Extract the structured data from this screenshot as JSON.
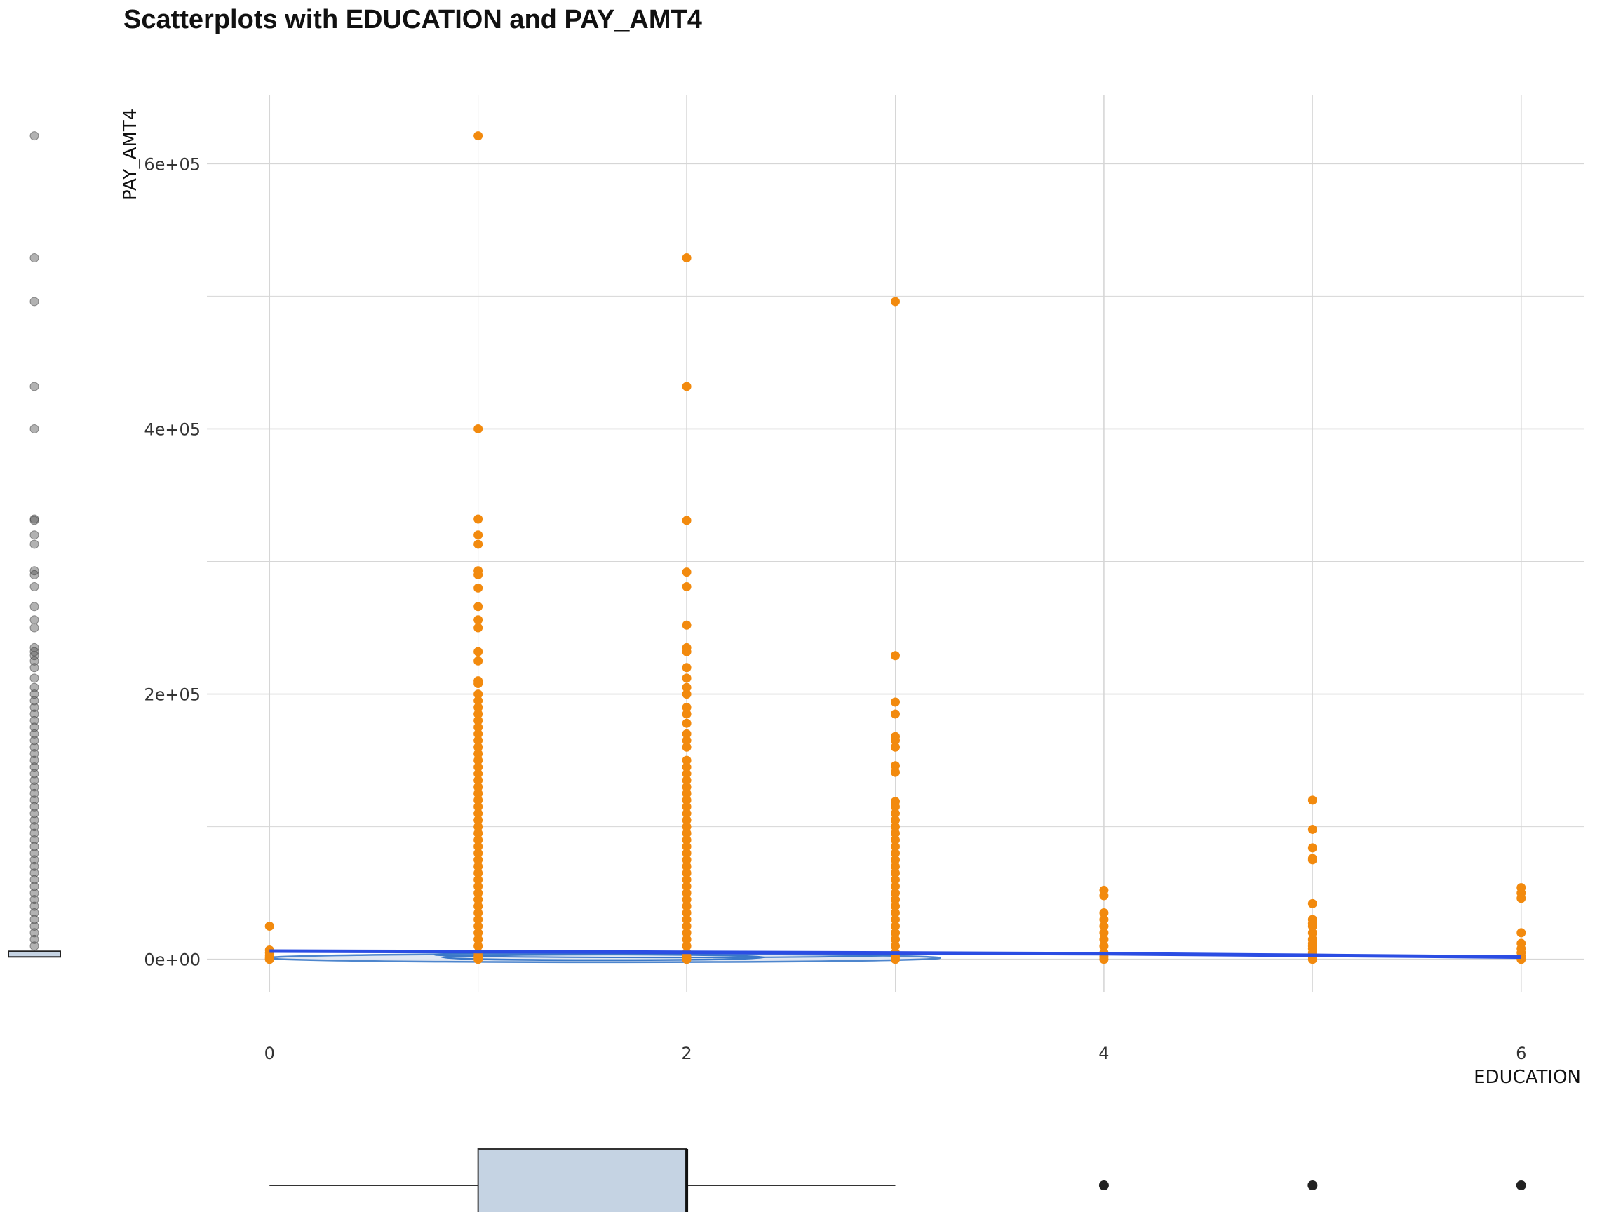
{
  "chart_data": {
    "type": "scatter",
    "title": "Scatterplots with EDUCATION and PAY_AMT4",
    "xlabel": "EDUCATION",
    "ylabel": "PAY_AMT4",
    "xlim": [
      -0.3,
      6.3
    ],
    "ylim": [
      -25000,
      652000
    ],
    "x_ticks": [
      {
        "value": 0,
        "label": "0"
      },
      {
        "value": 2,
        "label": "2"
      },
      {
        "value": 4,
        "label": "4"
      },
      {
        "value": 6,
        "label": "6"
      }
    ],
    "y_ticks": [
      {
        "value": 0,
        "label": "0e+00"
      },
      {
        "value": 200000,
        "label": "2e+05"
      },
      {
        "value": 400000,
        "label": "4e+05"
      },
      {
        "value": 600000,
        "label": "6e+05"
      }
    ],
    "grid": true,
    "point_color": "#f28a0e",
    "smooth_color": "#2b4de3",
    "density_color": "#3a78c8",
    "marginal_point_color": "#555555",
    "box_fill": "#c5d3e3",
    "series": [
      {
        "x": 0,
        "values": [
          25000,
          7000,
          5000,
          3000,
          1500,
          500,
          0
        ]
      },
      {
        "x": 1,
        "values": [
          621000,
          400000,
          332000,
          320000,
          313000,
          293000,
          290000,
          280000,
          266000,
          256000,
          250000,
          232000,
          225000,
          210000,
          208000,
          200000,
          195000,
          190000,
          185000,
          180000,
          175000,
          170000,
          165000,
          160000,
          155000,
          150000,
          145000,
          140000,
          135000,
          130000,
          125000,
          120000,
          115000,
          110000,
          105000,
          100000,
          95000,
          90000,
          85000,
          80000,
          75000,
          70000,
          65000,
          60000,
          55000,
          50000,
          45000,
          40000,
          35000,
          30000,
          25000,
          20000,
          15000,
          10000,
          5000,
          2000,
          0
        ]
      },
      {
        "x": 2,
        "values": [
          529000,
          432000,
          331000,
          292000,
          281000,
          252000,
          235000,
          232000,
          220000,
          212000,
          205000,
          200000,
          190000,
          185000,
          178000,
          170000,
          165000,
          160000,
          150000,
          145000,
          140000,
          135000,
          130000,
          125000,
          120000,
          115000,
          110000,
          105000,
          100000,
          95000,
          90000,
          85000,
          80000,
          75000,
          70000,
          65000,
          60000,
          55000,
          50000,
          45000,
          40000,
          35000,
          30000,
          25000,
          20000,
          15000,
          10000,
          5000,
          2000,
          0
        ]
      },
      {
        "x": 3,
        "values": [
          496000,
          229000,
          194000,
          185000,
          168000,
          165000,
          160000,
          146000,
          141000,
          119000,
          115000,
          110000,
          105000,
          100000,
          95000,
          90000,
          85000,
          80000,
          75000,
          70000,
          65000,
          60000,
          55000,
          50000,
          45000,
          40000,
          35000,
          30000,
          25000,
          20000,
          15000,
          10000,
          5000,
          2000,
          0
        ]
      },
      {
        "x": 4,
        "values": [
          52000,
          48000,
          35000,
          30000,
          25000,
          20000,
          15000,
          10000,
          5000,
          2000,
          0
        ]
      },
      {
        "x": 5,
        "values": [
          120000,
          98000,
          84000,
          76000,
          75000,
          42000,
          30000,
          27000,
          25000,
          20000,
          15000,
          12000,
          10000,
          8000,
          5000,
          2000,
          0
        ]
      },
      {
        "x": 6,
        "values": [
          54000,
          50000,
          46000,
          20000,
          12000,
          8000,
          5000,
          2000,
          0
        ]
      }
    ],
    "smooth_line": {
      "x": [
        0,
        1,
        2,
        3,
        4,
        5,
        6
      ],
      "y": [
        6200,
        5800,
        5300,
        4800,
        4200,
        3000,
        1700
      ]
    },
    "marginal_y_points": [
      621000,
      529000,
      496000,
      432000,
      400000,
      332000,
      331000,
      320000,
      313000,
      293000,
      290000,
      281000,
      266000,
      256000,
      250000,
      235000,
      232000,
      229000,
      225000,
      220000,
      212000,
      205000,
      200000,
      195000,
      190000,
      185000,
      180000,
      175000,
      170000,
      165000,
      160000,
      155000,
      150000,
      145000,
      140000,
      135000,
      130000,
      125000,
      120000,
      115000,
      110000,
      105000,
      100000,
      95000,
      90000,
      85000,
      80000,
      75000,
      70000,
      65000,
      60000,
      55000,
      50000,
      45000,
      40000,
      35000,
      30000,
      25000,
      20000,
      15000,
      10000
    ],
    "marginal_x_box": {
      "min": 0,
      "q1": 1,
      "median": 2,
      "q3": 2,
      "max": 3,
      "outliers": [
        4,
        5,
        6
      ]
    }
  }
}
